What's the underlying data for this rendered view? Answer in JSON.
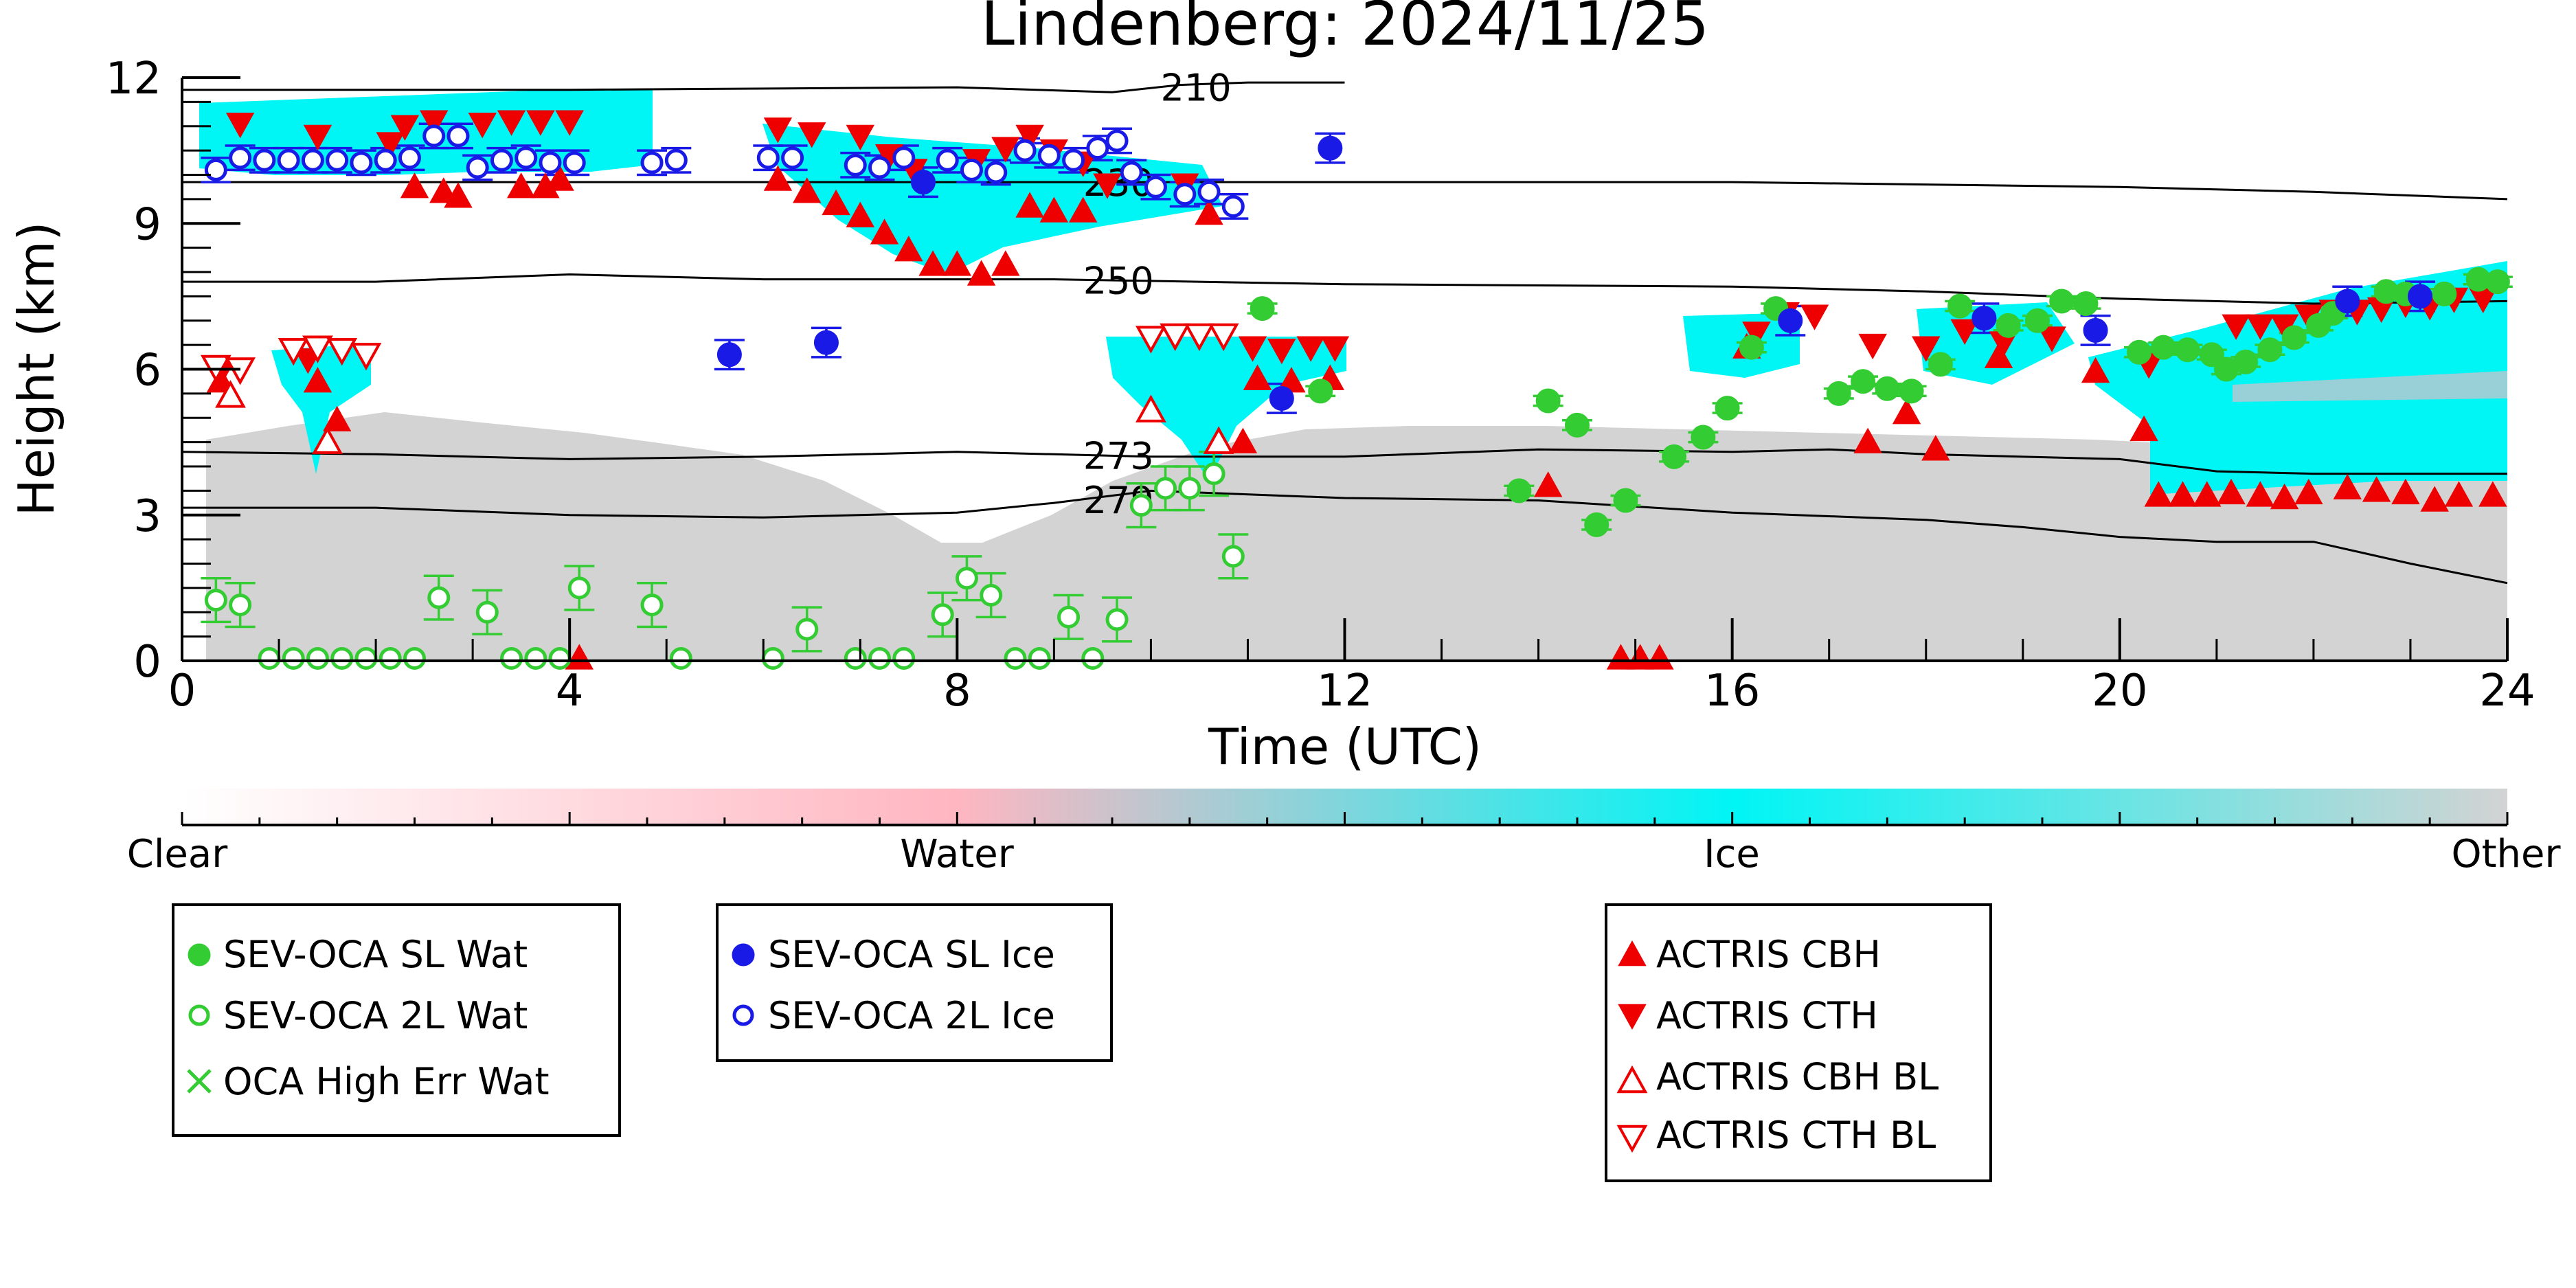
{
  "chart_data": {
    "type": "scatter",
    "title": "Lindenberg: 2024/11/25",
    "xlabel": "Time (UTC)",
    "ylabel": "Height (km)",
    "xlim": [
      0,
      24
    ],
    "ylim": [
      0,
      12
    ],
    "x_ticks": [
      "0",
      "4",
      "8",
      "12",
      "16",
      "20",
      "24"
    ],
    "y_ticks": [
      "0",
      "3",
      "6",
      "9",
      "12"
    ],
    "grid": false,
    "colors": {
      "clear": "#ffffff",
      "water": "#ffb6c1",
      "ice": "#00f5f5",
      "other": "#d3d3d3",
      "sl_wat": "#33cc33",
      "sl_ice": "#1a1ae6",
      "actris": "#ee0000"
    },
    "colorbar": {
      "labels": [
        "Clear",
        "Water",
        "Ice",
        "Other"
      ]
    },
    "legends": [
      {
        "entries": [
          {
            "label": "SEV-OCA SL Wat",
            "marker": "filled-circle",
            "color": "#33cc33"
          },
          {
            "label": "SEV-OCA 2L Wat",
            "marker": "open-circle",
            "color": "#33cc33"
          },
          {
            "label": "OCA High Err Wat",
            "marker": "x",
            "color": "#33cc33"
          }
        ]
      },
      {
        "entries": [
          {
            "label": "SEV-OCA SL Ice",
            "marker": "filled-circle",
            "color": "#1a1ae6"
          },
          {
            "label": "SEV-OCA 2L Ice",
            "marker": "open-circle",
            "color": "#1a1ae6"
          }
        ]
      },
      {
        "entries": [
          {
            "label": "ACTRIS CBH",
            "marker": "triangle-up",
            "color": "#ee0000"
          },
          {
            "label": "ACTRIS CTH",
            "marker": "triangle-down",
            "color": "#ee0000"
          },
          {
            "label": "ACTRIS CBH BL",
            "marker": "open-triangle-up",
            "color": "#ee0000"
          },
          {
            "label": "ACTRIS CTH BL",
            "marker": "open-triangle-down",
            "color": "#ee0000"
          }
        ]
      }
    ],
    "isotherms": [
      {
        "label": "210",
        "label_x": 10.1,
        "points": [
          [
            0,
            11.75
          ],
          [
            4,
            11.75
          ],
          [
            8,
            11.8
          ],
          [
            9.6,
            11.7
          ],
          [
            10.3,
            11.85
          ],
          [
            11,
            11.9
          ],
          [
            12,
            11.9
          ]
        ]
      },
      {
        "label": "230",
        "label_x": 9.3,
        "points": [
          [
            0,
            9.85
          ],
          [
            4,
            9.85
          ],
          [
            8,
            9.85
          ],
          [
            9,
            9.85
          ],
          [
            12,
            9.85
          ],
          [
            16,
            9.85
          ],
          [
            20,
            9.75
          ],
          [
            22,
            9.65
          ],
          [
            24,
            9.5
          ]
        ]
      },
      {
        "label": "250",
        "label_x": 9.3,
        "points": [
          [
            0,
            7.8
          ],
          [
            2,
            7.8
          ],
          [
            4,
            7.95
          ],
          [
            6,
            7.85
          ],
          [
            8,
            7.85
          ],
          [
            9,
            7.85
          ],
          [
            12,
            7.75
          ],
          [
            16,
            7.7
          ],
          [
            18,
            7.6
          ],
          [
            20,
            7.45
          ],
          [
            22,
            7.35
          ],
          [
            24,
            7.4
          ]
        ]
      },
      {
        "label": "273",
        "label_x": 9.3,
        "points": [
          [
            0,
            4.3
          ],
          [
            2,
            4.25
          ],
          [
            4,
            4.15
          ],
          [
            6,
            4.2
          ],
          [
            8,
            4.3
          ],
          [
            9,
            4.25
          ],
          [
            10,
            4.2
          ],
          [
            12,
            4.2
          ],
          [
            14,
            4.35
          ],
          [
            16,
            4.3
          ],
          [
            17,
            4.35
          ],
          [
            18,
            4.25
          ],
          [
            20,
            4.15
          ],
          [
            21,
            3.9
          ],
          [
            22,
            3.85
          ],
          [
            24,
            3.85
          ]
        ]
      },
      {
        "label": "279",
        "label_x": 9.3,
        "points": [
          [
            0,
            3.15
          ],
          [
            2,
            3.15
          ],
          [
            4,
            3.0
          ],
          [
            6,
            2.95
          ],
          [
            8,
            3.05
          ],
          [
            9,
            3.25
          ],
          [
            10,
            3.5
          ],
          [
            12,
            3.35
          ],
          [
            14,
            3.3
          ],
          [
            16,
            3.05
          ],
          [
            18,
            2.9
          ],
          [
            19,
            2.75
          ],
          [
            20,
            2.55
          ],
          [
            21,
            2.45
          ],
          [
            22,
            2.45
          ],
          [
            23,
            2.0
          ],
          [
            24,
            1.6
          ]
        ]
      }
    ],
    "sl_wat": [
      [
        11.15,
        7.25
      ],
      [
        11.75,
        5.55
      ],
      [
        13.8,
        3.5
      ],
      [
        14.1,
        5.35
      ],
      [
        14.4,
        4.85
      ],
      [
        14.6,
        2.8
      ],
      [
        14.9,
        3.3
      ],
      [
        15.4,
        4.2
      ],
      [
        15.7,
        4.6
      ],
      [
        15.95,
        5.2
      ],
      [
        16.2,
        6.45
      ],
      [
        16.45,
        7.25
      ],
      [
        17.1,
        5.5
      ],
      [
        17.35,
        5.75
      ],
      [
        17.6,
        5.6
      ],
      [
        17.85,
        5.55
      ],
      [
        18.15,
        6.1
      ],
      [
        18.35,
        7.3
      ],
      [
        18.85,
        6.9
      ],
      [
        19.15,
        7.0
      ],
      [
        19.4,
        7.4
      ],
      [
        19.65,
        7.35
      ],
      [
        20.2,
        6.35
      ],
      [
        20.45,
        6.45
      ],
      [
        20.7,
        6.4
      ],
      [
        20.95,
        6.3
      ],
      [
        21.1,
        6.0
      ],
      [
        21.3,
        6.15
      ],
      [
        21.55,
        6.4
      ],
      [
        21.8,
        6.65
      ],
      [
        22.05,
        6.9
      ],
      [
        22.2,
        7.15
      ],
      [
        22.75,
        7.6
      ],
      [
        22.95,
        7.55
      ],
      [
        23.35,
        7.55
      ],
      [
        23.7,
        7.85
      ],
      [
        23.9,
        7.8
      ]
    ],
    "wat_2l": [
      [
        0.35,
        1.25
      ],
      [
        0.6,
        1.15
      ],
      [
        0.9,
        0.05
      ],
      [
        1.15,
        0.05
      ],
      [
        1.4,
        0.05
      ],
      [
        1.65,
        0.05
      ],
      [
        1.9,
        0.05
      ],
      [
        2.15,
        0.05
      ],
      [
        2.4,
        0.05
      ],
      [
        2.65,
        1.3
      ],
      [
        3.15,
        1.0
      ],
      [
        3.4,
        0.05
      ],
      [
        3.65,
        0.05
      ],
      [
        3.9,
        0.05
      ],
      [
        4.1,
        1.5
      ],
      [
        4.85,
        1.15
      ],
      [
        5.15,
        0.05
      ],
      [
        6.1,
        0.05
      ],
      [
        6.45,
        0.65
      ],
      [
        6.95,
        0.05
      ],
      [
        7.2,
        0.05
      ],
      [
        7.45,
        0.05
      ],
      [
        7.85,
        0.95
      ],
      [
        8.1,
        1.7
      ],
      [
        8.35,
        1.35
      ],
      [
        8.6,
        0.05
      ],
      [
        8.85,
        0.05
      ],
      [
        9.15,
        0.9
      ],
      [
        9.4,
        0.05
      ],
      [
        9.65,
        0.85
      ],
      [
        9.9,
        3.2
      ],
      [
        10.15,
        3.55
      ],
      [
        10.4,
        3.55
      ],
      [
        10.65,
        3.85
      ],
      [
        10.85,
        2.15
      ]
    ],
    "sl_ice": [
      [
        5.65,
        6.3
      ],
      [
        6.65,
        6.55
      ],
      [
        7.65,
        9.85
      ],
      [
        11.35,
        5.4
      ],
      [
        11.85,
        10.55
      ],
      [
        16.6,
        7.0
      ],
      [
        18.6,
        7.05
      ],
      [
        19.75,
        6.8
      ],
      [
        22.35,
        7.4
      ],
      [
        23.1,
        7.5
      ]
    ],
    "ice_2l": [
      [
        0.35,
        10.1
      ],
      [
        0.6,
        10.35
      ],
      [
        0.85,
        10.3
      ],
      [
        1.1,
        10.3
      ],
      [
        1.35,
        10.3
      ],
      [
        1.6,
        10.3
      ],
      [
        1.85,
        10.25
      ],
      [
        2.1,
        10.3
      ],
      [
        2.35,
        10.35
      ],
      [
        2.6,
        10.8
      ],
      [
        2.85,
        10.8
      ],
      [
        3.05,
        10.15
      ],
      [
        3.3,
        10.3
      ],
      [
        3.55,
        10.35
      ],
      [
        3.8,
        10.25
      ],
      [
        4.05,
        10.25
      ],
      [
        4.85,
        10.25
      ],
      [
        5.1,
        10.3
      ],
      [
        6.05,
        10.35
      ],
      [
        6.3,
        10.35
      ],
      [
        6.95,
        10.2
      ],
      [
        7.2,
        10.15
      ],
      [
        7.45,
        10.35
      ],
      [
        7.9,
        10.3
      ],
      [
        8.15,
        10.1
      ],
      [
        8.4,
        10.05
      ],
      [
        8.7,
        10.5
      ],
      [
        8.95,
        10.4
      ],
      [
        9.2,
        10.3
      ],
      [
        9.45,
        10.55
      ],
      [
        9.65,
        10.7
      ],
      [
        9.8,
        10.05
      ],
      [
        10.05,
        9.75
      ],
      [
        10.35,
        9.6
      ],
      [
        10.6,
        9.65
      ],
      [
        10.85,
        9.35
      ]
    ],
    "cbh": [
      [
        0.4,
        5.75
      ],
      [
        1.4,
        5.75
      ],
      [
        1.6,
        4.95
      ],
      [
        2.4,
        9.75
      ],
      [
        2.7,
        9.65
      ],
      [
        2.85,
        9.55
      ],
      [
        3.5,
        9.75
      ],
      [
        3.75,
        9.75
      ],
      [
        3.9,
        9.9
      ],
      [
        6.15,
        9.9
      ],
      [
        6.45,
        9.65
      ],
      [
        6.75,
        9.4
      ],
      [
        7.0,
        9.15
      ],
      [
        7.25,
        8.8
      ],
      [
        7.5,
        8.45
      ],
      [
        7.75,
        8.15
      ],
      [
        8.0,
        8.15
      ],
      [
        8.25,
        7.95
      ],
      [
        8.5,
        8.15
      ],
      [
        8.75,
        9.35
      ],
      [
        9.0,
        9.25
      ],
      [
        9.3,
        9.25
      ],
      [
        10.6,
        9.2
      ],
      [
        10.95,
        4.5
      ],
      [
        11.1,
        5.8
      ],
      [
        11.45,
        5.75
      ],
      [
        11.85,
        5.8
      ],
      [
        14.1,
        3.6
      ],
      [
        16.15,
        6.45
      ],
      [
        17.4,
        4.5
      ],
      [
        17.8,
        5.1
      ],
      [
        18.1,
        4.35
      ],
      [
        18.75,
        6.25
      ],
      [
        19.75,
        5.95
      ],
      [
        20.25,
        4.75
      ],
      [
        20.4,
        3.4
      ],
      [
        20.65,
        3.4
      ],
      [
        20.9,
        3.4
      ],
      [
        21.15,
        3.45
      ],
      [
        21.45,
        3.4
      ],
      [
        21.7,
        3.35
      ],
      [
        21.95,
        3.45
      ],
      [
        22.35,
        3.55
      ],
      [
        22.65,
        3.5
      ],
      [
        22.95,
        3.45
      ],
      [
        23.25,
        3.3
      ],
      [
        23.5,
        3.4
      ],
      [
        23.85,
        3.4
      ],
      [
        14.85,
        0.05
      ],
      [
        15.05,
        0.05
      ],
      [
        15.25,
        0.05
      ],
      [
        4.1,
        0.05
      ]
    ],
    "cth": [
      [
        0.4,
        5.95
      ],
      [
        0.6,
        11.05
      ],
      [
        1.3,
        6.2
      ],
      [
        1.4,
        10.8
      ],
      [
        2.15,
        10.65
      ],
      [
        2.3,
        11.0
      ],
      [
        2.6,
        11.1
      ],
      [
        3.1,
        11.05
      ],
      [
        3.4,
        11.1
      ],
      [
        3.7,
        11.1
      ],
      [
        4.0,
        11.1
      ],
      [
        6.15,
        10.95
      ],
      [
        6.5,
        10.85
      ],
      [
        7.0,
        10.8
      ],
      [
        7.3,
        10.4
      ],
      [
        7.55,
        10.1
      ],
      [
        8.2,
        10.3
      ],
      [
        8.5,
        10.55
      ],
      [
        8.75,
        10.8
      ],
      [
        9.0,
        10.5
      ],
      [
        9.3,
        10.25
      ],
      [
        9.55,
        9.8
      ],
      [
        10.35,
        9.8
      ],
      [
        11.05,
        6.45
      ],
      [
        11.35,
        6.4
      ],
      [
        11.65,
        6.45
      ],
      [
        11.9,
        6.45
      ],
      [
        16.25,
        6.75
      ],
      [
        16.55,
        7.15
      ],
      [
        16.85,
        7.1
      ],
      [
        17.45,
        6.5
      ],
      [
        18.0,
        6.45
      ],
      [
        18.4,
        6.8
      ],
      [
        18.8,
        6.55
      ],
      [
        19.3,
        6.65
      ],
      [
        20.3,
        6.1
      ],
      [
        21.2,
        6.9
      ],
      [
        21.45,
        6.9
      ],
      [
        21.7,
        6.9
      ],
      [
        21.95,
        7.1
      ],
      [
        22.2,
        7.2
      ],
      [
        22.45,
        7.2
      ],
      [
        22.7,
        7.25
      ],
      [
        22.95,
        7.35
      ],
      [
        23.2,
        7.3
      ],
      [
        23.45,
        7.45
      ],
      [
        23.75,
        7.45
      ]
    ],
    "cbh_bl": [
      [
        0.5,
        5.45
      ],
      [
        1.5,
        4.5
      ],
      [
        10.0,
        5.15
      ],
      [
        10.7,
        4.5
      ]
    ],
    "cth_bl": [
      [
        0.35,
        6.05
      ],
      [
        0.6,
        6.0
      ],
      [
        1.15,
        6.4
      ],
      [
        1.4,
        6.45
      ],
      [
        1.65,
        6.4
      ],
      [
        1.9,
        6.3
      ],
      [
        10.0,
        6.65
      ],
      [
        10.25,
        6.7
      ],
      [
        10.5,
        6.7
      ],
      [
        10.75,
        6.7
      ]
    ]
  }
}
